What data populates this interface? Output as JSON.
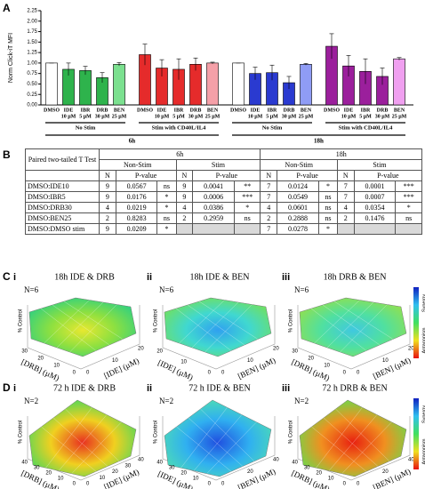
{
  "panel_labels": {
    "a": "A",
    "b": "B",
    "c": "C",
    "d": "D"
  },
  "chart_data": {
    "type": "bar",
    "ylabel": "Norm Click-iT MFI",
    "categories": [
      "DMSO",
      "IDE",
      "IBR",
      "DRB",
      "BEN",
      "DMSO",
      "IDE",
      "IBR",
      "DRB",
      "BEN",
      "DMSO",
      "IDE",
      "IBR",
      "DRB",
      "BEN",
      "DMSO",
      "IDE",
      "IBR",
      "DRB",
      "BEN"
    ],
    "doses": [
      null,
      "10 µM",
      "5 µM",
      "30 µM",
      "25 µM",
      null,
      "10 µM",
      "5 µM",
      "30 µM",
      "25 µM",
      null,
      "10 µM",
      "5 µM",
      "30 µM",
      "25 µM",
      null,
      "10 µM",
      "5 µM",
      "30 µM",
      "25 µM"
    ],
    "values": [
      1.0,
      0.85,
      0.82,
      0.65,
      0.97,
      1.2,
      0.88,
      0.85,
      0.97,
      1.0,
      1.0,
      0.75,
      0.77,
      0.53,
      0.97,
      1.4,
      0.93,
      0.8,
      0.68,
      1.1
    ],
    "errors": [
      0,
      0.15,
      0.1,
      0.12,
      0.04,
      0.25,
      0.2,
      0.25,
      0.15,
      0.02,
      0,
      0.15,
      0.18,
      0.15,
      0.02,
      0.3,
      0.25,
      0.3,
      0.2,
      0.03
    ],
    "colors": [
      "#ffffff",
      "#2eb34c",
      "#2eb34c",
      "#2eb34c",
      "#7be08f",
      "#e52b2b",
      "#e52b2b",
      "#e52b2b",
      "#e52b2b",
      "#f5a0a8",
      "#ffffff",
      "#2a3ad0",
      "#2a3ad0",
      "#2a3ad0",
      "#8f9cf5",
      "#9b1f9c",
      "#9b1f9c",
      "#9b1f9c",
      "#9b1f9c",
      "#f0a0f0"
    ],
    "groups": [
      "No Stim",
      "Stim with CD40L/IL4",
      "No Stim",
      "Stim with CD40L/IL4"
    ],
    "time_groups": [
      "6h",
      "18h"
    ],
    "ylim": [
      0,
      2.25
    ],
    "yticks": [
      {
        "value": 0,
        "label": "0.00"
      },
      {
        "value": 0.25,
        "label": "0.25"
      },
      {
        "value": 0.5,
        "label": "0.50"
      },
      {
        "value": 0.75,
        "label": "0.75"
      },
      {
        "value": 1,
        "label": "1.00"
      },
      {
        "value": 1.25,
        "label": "1.25"
      },
      {
        "value": 1.5,
        "label": "1.50"
      },
      {
        "value": 1.75,
        "label": "1.75"
      },
      {
        "value": 2,
        "label": "2.00"
      },
      {
        "value": 2.25,
        "label": "2.25"
      }
    ]
  },
  "table": {
    "corner": "Paired two-tailed T Test",
    "times": [
      "6h",
      "18h"
    ],
    "conditions": [
      "Non-Stim",
      "Stim",
      "Non-Stim",
      "Stim"
    ],
    "subheaders": [
      "N",
      "P-value",
      "N",
      "P-value",
      "N",
      "P-value",
      "N",
      "P-value"
    ],
    "rows": [
      [
        "DMSO:IDE10",
        "9",
        "0.0567",
        "ns",
        "9",
        "0.0041",
        "**",
        "7",
        "0.0124",
        "*",
        "7",
        "0.0001",
        "***"
      ],
      [
        "DMSO:IBR5",
        "9",
        "0.0176",
        "*",
        "9",
        "0.0006",
        "***",
        "7",
        "0.0549",
        "ns",
        "7",
        "0.0007",
        "***"
      ],
      [
        "DMSO:DRB30",
        "4",
        "0.0219",
        "*",
        "4",
        "0.0386",
        "*",
        "4",
        "0.0601",
        "ns",
        "4",
        "0.0354",
        "*"
      ],
      [
        "DMSO:BEN25",
        "2",
        "0.8283",
        "ns",
        "2",
        "0.2959",
        "ns",
        "2",
        "0.2888",
        "ns",
        "2",
        "0.1476",
        "ns"
      ],
      [
        "DMSO:DMSO stim",
        "9",
        "0.0209",
        "*",
        null,
        null,
        null,
        "7",
        "0.0278",
        "*",
        null,
        null,
        null
      ]
    ]
  },
  "surfaces": [
    {
      "index": "i",
      "title": "18h IDE & DRB",
      "n": "N=6",
      "zlabel": "% Control",
      "xlabel": "[DRB] (µM)",
      "ylabel": "[IDE] (µM)",
      "xticks": [
        0,
        10,
        20,
        30
      ],
      "yticks": [
        0,
        10,
        20
      ],
      "colors": [
        "#e8e830",
        "#8ee040",
        "#30d080"
      ]
    },
    {
      "index": "ii",
      "title": "18h IDE & BEN",
      "n": "N=6",
      "zlabel": "% Control",
      "xlabel": "[IDE] (µM)",
      "ylabel": "[BEN] (µM)",
      "xticks": [
        0,
        10,
        20
      ],
      "yticks": [
        0,
        10,
        20
      ],
      "colors": [
        "#30a0f0",
        "#40d8d0",
        "#70e060"
      ]
    },
    {
      "index": "iii",
      "title": "18h DRB & BEN",
      "n": "N=6",
      "zlabel": "% Control",
      "xlabel": "[DRB] (µM)",
      "ylabel": "[BEN] (µM)",
      "xticks": [
        0,
        10,
        20,
        30
      ],
      "yticks": [
        0,
        10,
        20
      ],
      "colors": [
        "#40c8e0",
        "#50e0a0",
        "#90e050"
      ],
      "colorbar": [
        "Synergy",
        "Antagonism"
      ]
    },
    {
      "index": "i",
      "title": "72 h IDE & DRB",
      "n": "N=2",
      "zlabel": "% Control",
      "xlabel": "[DRB] (µM)",
      "ylabel": "[IDE] (µM)",
      "xticks": [
        0,
        10,
        20,
        30,
        40
      ],
      "yticks": [
        0,
        10,
        20,
        30,
        40
      ],
      "colors": [
        "#e83020",
        "#f0d020",
        "#40d860"
      ]
    },
    {
      "index": "ii",
      "title": "72 h IDE & BEN",
      "n": "N=2",
      "zlabel": "% Control",
      "xlabel": "[IDE] (µM)",
      "ylabel": "[BEN] (µM)",
      "xticks": [
        0,
        10,
        20,
        30,
        40
      ],
      "yticks": [
        0,
        20,
        40
      ],
      "colors": [
        "#2050e0",
        "#30b0f0",
        "#50e0b0"
      ]
    },
    {
      "index": "iii",
      "title": "72 h DRB & BEN",
      "n": "N=2",
      "zlabel": "% Control",
      "xlabel": "[DRB] (µM)",
      "ylabel": "[BEN] (µM)",
      "xticks": [
        0,
        10,
        20,
        30,
        40
      ],
      "yticks": [
        0,
        20,
        40
      ],
      "colors": [
        "#e82010",
        "#f09020",
        "#60e050"
      ],
      "colorbar": [
        "Synergy",
        "Antagonism"
      ]
    }
  ]
}
